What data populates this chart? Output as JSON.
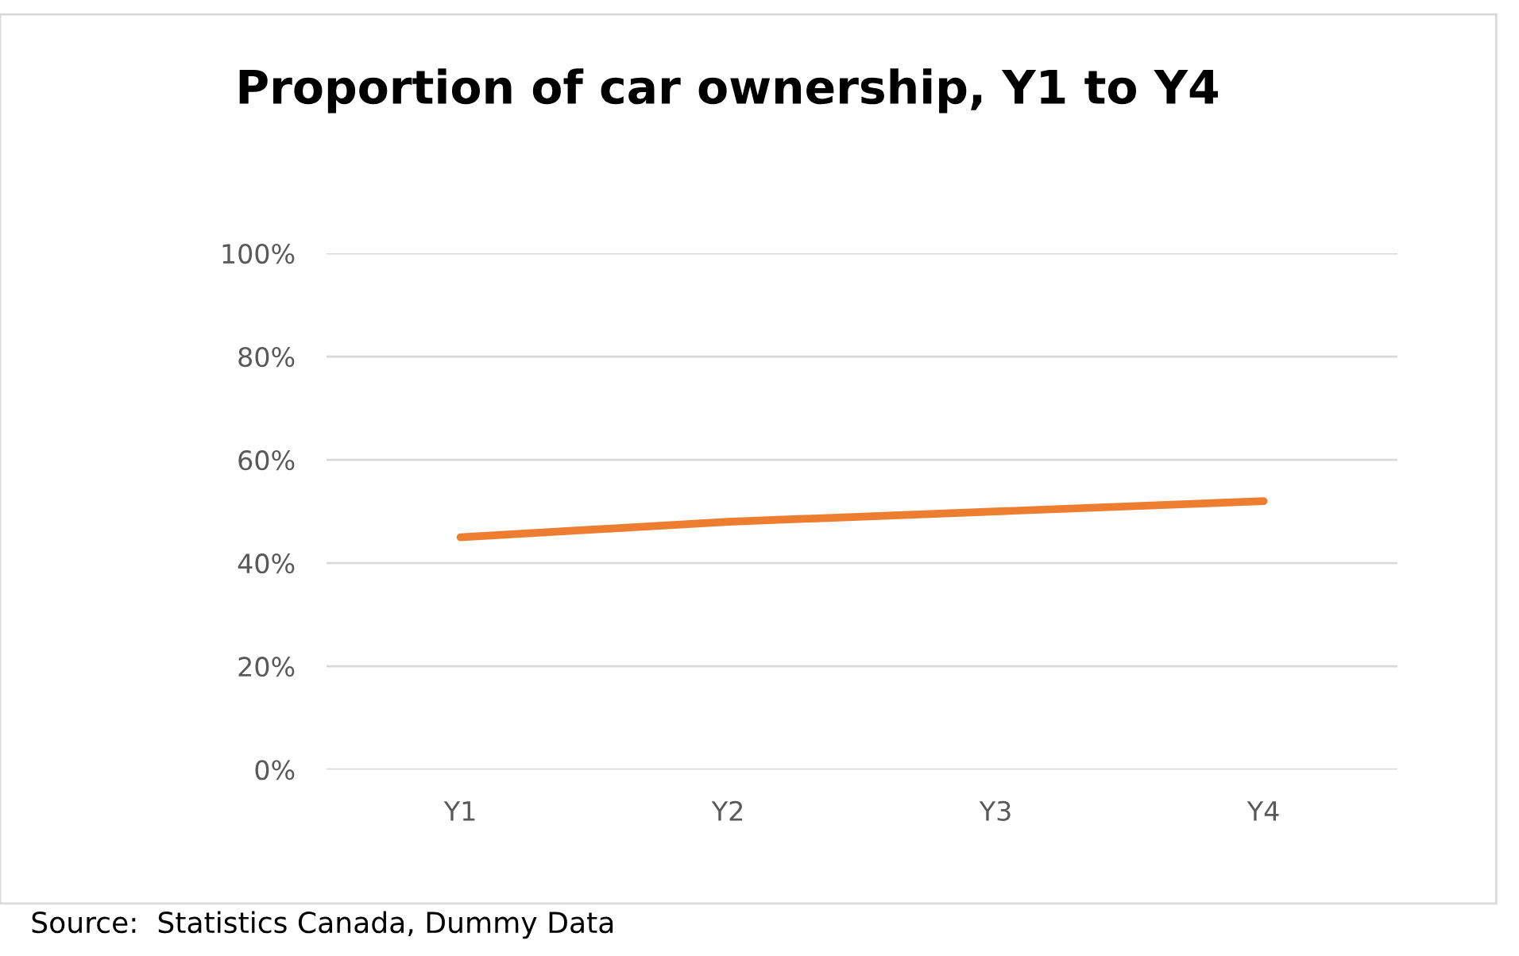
{
  "chart_data": {
    "type": "line",
    "title": "Proportion of car ownership, Y1 to Y4",
    "categories": [
      "Y1",
      "Y2",
      "Y3",
      "Y4"
    ],
    "series": [
      {
        "color": "#ed7d31",
        "values": [
          45,
          48,
          50,
          52
        ]
      }
    ],
    "ylim": [
      0,
      100
    ],
    "yticks": [
      {
        "value": 0,
        "label": "0%"
      },
      {
        "value": 20,
        "label": "20%"
      },
      {
        "value": 40,
        "label": "40%"
      },
      {
        "value": 60,
        "label": "60%"
      },
      {
        "value": 80,
        "label": "80%"
      },
      {
        "value": 100,
        "label": "100%"
      }
    ],
    "grid": "y",
    "marker": "none",
    "line_style": "solid",
    "annotations": [
      "Source:  Statistics Canada, Dummy Data"
    ]
  }
}
